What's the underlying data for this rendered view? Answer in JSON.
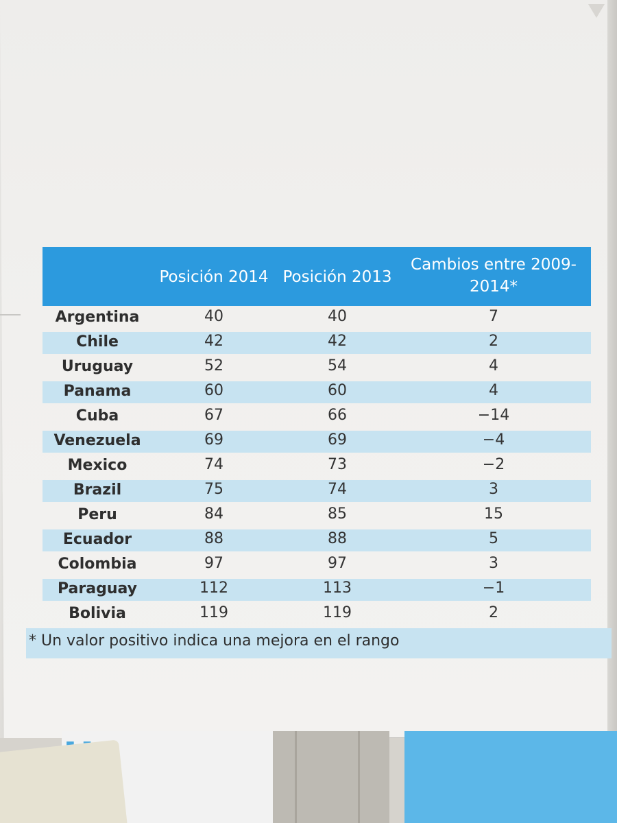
{
  "table": {
    "headers": [
      "",
      "Posición 2014",
      "Posición 2013",
      "Cambios entre 2009-2014*"
    ],
    "rows": [
      {
        "country": "Argentina",
        "pos2014": "40",
        "pos2013": "40",
        "change": "7"
      },
      {
        "country": "Chile",
        "pos2014": "42",
        "pos2013": "42",
        "change": "2"
      },
      {
        "country": "Uruguay",
        "pos2014": "52",
        "pos2013": "54",
        "change": "4"
      },
      {
        "country": "Panama",
        "pos2014": "60",
        "pos2013": "60",
        "change": "4"
      },
      {
        "country": "Cuba",
        "pos2014": "67",
        "pos2013": "66",
        "change": "−14"
      },
      {
        "country": "Venezuela",
        "pos2014": "69",
        "pos2013": "69",
        "change": "−4"
      },
      {
        "country": "Mexico",
        "pos2014": "74",
        "pos2013": "73",
        "change": "−2"
      },
      {
        "country": "Brazil",
        "pos2014": "75",
        "pos2013": "74",
        "change": "3"
      },
      {
        "country": "Peru",
        "pos2014": "84",
        "pos2013": "85",
        "change": "15"
      },
      {
        "country": "Ecuador",
        "pos2014": "88",
        "pos2013": "88",
        "change": "5"
      },
      {
        "country": "Colombia",
        "pos2014": "97",
        "pos2013": "97",
        "change": "3"
      },
      {
        "country": "Paraguay",
        "pos2014": "112",
        "pos2013": "113",
        "change": "−1"
      },
      {
        "country": "Bolivia",
        "pos2014": "119",
        "pos2013": "119",
        "change": "2"
      }
    ],
    "footnote": "* Un valor positivo indica una mejora en el rango"
  },
  "colors": {
    "header_blue": "#2c9ade",
    "row_shade": "#c7e3f1",
    "header_text": "#ffffff"
  }
}
